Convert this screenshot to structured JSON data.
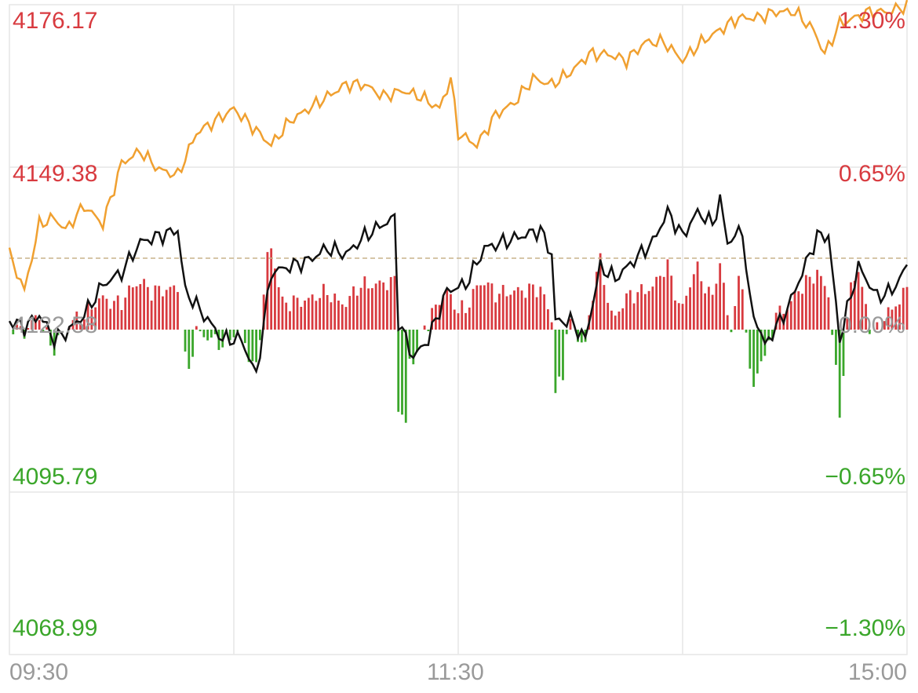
{
  "colors": {
    "up": "#d83a3f",
    "down": "#3aa62a",
    "price_line": "#111111",
    "avg_line": "#f0a030",
    "baseline": "#c8b48a",
    "grid": "#e6e6e6",
    "axis_text": "#9a9a9a"
  },
  "chart_data": {
    "type": "line",
    "title": "",
    "xlabel": "",
    "ylabel": "",
    "baseline_price": 4122.58,
    "ylim": [
      4068.99,
      4176.17
    ],
    "y_ticks_price": [
      {
        "label": "4176.17",
        "value": 4176.17,
        "sign": "up"
      },
      {
        "label": "4149.38",
        "value": 4149.38,
        "sign": "up"
      },
      {
        "label": "4122.58",
        "value": 4122.58,
        "sign": "flat"
      },
      {
        "label": "4095.79",
        "value": 4095.79,
        "sign": "down"
      },
      {
        "label": "4068.99",
        "value": 4068.99,
        "sign": "down"
      }
    ],
    "y_ticks_pct": [
      {
        "label": "1.30%",
        "value": 1.3,
        "sign": "up"
      },
      {
        "label": "0.65%",
        "value": 0.65,
        "sign": "up"
      },
      {
        "label": "0.00%",
        "value": 0.0,
        "sign": "flat"
      },
      {
        "label": "−0.65%",
        "value": -0.65,
        "sign": "down"
      },
      {
        "label": "−1.30%",
        "value": -1.3,
        "sign": "down"
      }
    ],
    "x_ticks": [
      "09:30",
      "11:30",
      "15:00"
    ],
    "n_points": 241,
    "series": [
      {
        "role": "avg",
        "anchors": [
          [
            0,
            4135
          ],
          [
            4,
            4129
          ],
          [
            8,
            4140
          ],
          [
            12,
            4141
          ],
          [
            15,
            4139
          ],
          [
            20,
            4143
          ],
          [
            25,
            4140
          ],
          [
            30,
            4150
          ],
          [
            35,
            4152
          ],
          [
            40,
            4149
          ],
          [
            45,
            4148
          ],
          [
            50,
            4155
          ],
          [
            55,
            4157
          ],
          [
            60,
            4159
          ],
          [
            65,
            4156
          ],
          [
            70,
            4153
          ],
          [
            75,
            4157
          ],
          [
            80,
            4159
          ],
          [
            85,
            4161
          ],
          [
            90,
            4163
          ],
          [
            95,
            4163
          ],
          [
            100,
            4161
          ],
          [
            105,
            4162
          ],
          [
            110,
            4161
          ],
          [
            115,
            4159
          ],
          [
            118,
            4164
          ],
          [
            120,
            4155
          ],
          [
            125,
            4153
          ],
          [
            130,
            4158
          ],
          [
            135,
            4160
          ],
          [
            140,
            4164
          ],
          [
            145,
            4163
          ],
          [
            150,
            4165
          ],
          [
            155,
            4168
          ],
          [
            160,
            4168
          ],
          [
            165,
            4167
          ],
          [
            170,
            4170
          ],
          [
            175,
            4170
          ],
          [
            180,
            4167
          ],
          [
            185,
            4170
          ],
          [
            190,
            4172
          ],
          [
            195,
            4174
          ],
          [
            200,
            4174
          ],
          [
            205,
            4175
          ],
          [
            210,
            4175
          ],
          [
            215,
            4172
          ],
          [
            218,
            4168
          ],
          [
            222,
            4173
          ],
          [
            226,
            4174
          ],
          [
            230,
            4175
          ],
          [
            235,
            4175
          ],
          [
            240,
            4176
          ]
        ]
      },
      {
        "role": "price",
        "anchors": [
          [
            0,
            4124
          ],
          [
            4,
            4123
          ],
          [
            8,
            4125
          ],
          [
            12,
            4121
          ],
          [
            15,
            4122
          ],
          [
            20,
            4125
          ],
          [
            25,
            4130
          ],
          [
            30,
            4132
          ],
          [
            35,
            4137
          ],
          [
            40,
            4138
          ],
          [
            45,
            4139
          ],
          [
            47,
            4129
          ],
          [
            52,
            4125
          ],
          [
            57,
            4121
          ],
          [
            62,
            4121
          ],
          [
            66,
            4115
          ],
          [
            70,
            4132
          ],
          [
            75,
            4133
          ],
          [
            80,
            4134
          ],
          [
            85,
            4136
          ],
          [
            90,
            4135
          ],
          [
            95,
            4138
          ],
          [
            100,
            4140
          ],
          [
            103,
            4141
          ],
          [
            104,
            4124
          ],
          [
            108,
            4118
          ],
          [
            112,
            4121
          ],
          [
            117,
            4129
          ],
          [
            122,
            4130
          ],
          [
            127,
            4136
          ],
          [
            132,
            4137
          ],
          [
            137,
            4138
          ],
          [
            142,
            4139
          ],
          [
            145,
            4135
          ],
          [
            146,
            4124
          ],
          [
            150,
            4124
          ],
          [
            154,
            4121
          ],
          [
            158,
            4133
          ],
          [
            162,
            4131
          ],
          [
            167,
            4134
          ],
          [
            172,
            4137
          ],
          [
            176,
            4142
          ],
          [
            180,
            4138
          ],
          [
            184,
            4142
          ],
          [
            188,
            4140
          ],
          [
            190,
            4144
          ],
          [
            192,
            4137
          ],
          [
            196,
            4139
          ],
          [
            198,
            4127
          ],
          [
            202,
            4120
          ],
          [
            206,
            4124
          ],
          [
            208,
            4126
          ],
          [
            212,
            4132
          ],
          [
            216,
            4138
          ],
          [
            219,
            4138
          ],
          [
            222,
            4121
          ],
          [
            227,
            4133
          ],
          [
            232,
            4128
          ],
          [
            236,
            4129
          ],
          [
            240,
            4133
          ]
        ]
      }
    ],
    "volume_bars": {
      "note": "vertical bars above/below the 0.00% baseline"
    }
  }
}
